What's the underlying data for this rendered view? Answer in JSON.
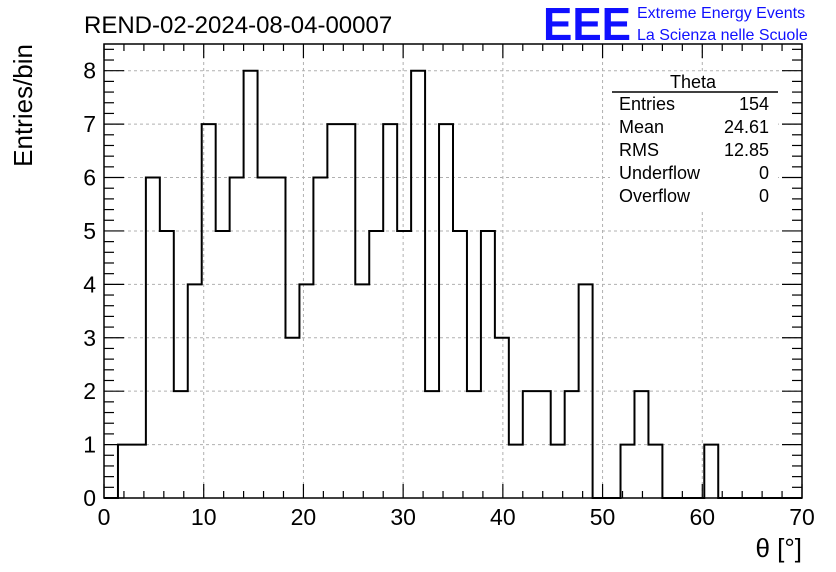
{
  "header": {
    "run_title": "REND-02-2024-08-04-00007",
    "logo_text": "EEE",
    "logo_line1": "Extreme Energy Events",
    "logo_line2": "La Scienza nelle Scuole",
    "logo_color": "#1010ff"
  },
  "stats": {
    "title": "Theta",
    "rows": [
      {
        "label": "Entries",
        "value": "154"
      },
      {
        "label": "Mean",
        "value": "24.61"
      },
      {
        "label": "RMS",
        "value": "12.85"
      },
      {
        "label": "Underflow",
        "value": "0"
      },
      {
        "label": "Overflow",
        "value": "0"
      }
    ]
  },
  "chart_data": {
    "type": "histogram",
    "title": "REND-02-2024-08-04-00007",
    "xlabel": "θ [°]",
    "ylabel": "Entries/bin",
    "xlim": [
      0,
      70
    ],
    "ylim": [
      0,
      8.5
    ],
    "bin_width": 1.4,
    "bin_start": 0,
    "x_ticks": [
      0,
      10,
      20,
      30,
      40,
      50,
      60,
      70
    ],
    "y_ticks": [
      0,
      1,
      2,
      3,
      4,
      5,
      6,
      7,
      8
    ],
    "grid": true,
    "line_color": "#000000",
    "values": [
      0,
      1,
      1,
      6,
      5,
      2,
      4,
      7,
      5,
      6,
      8,
      6,
      6,
      3,
      4,
      6,
      7,
      7,
      4,
      5,
      7,
      5,
      8,
      2,
      7,
      5,
      2,
      5,
      3,
      1,
      2,
      2,
      1,
      2,
      4,
      0,
      0,
      1,
      2,
      1,
      0,
      0,
      0,
      1,
      0,
      0,
      0,
      0,
      0,
      0
    ]
  }
}
